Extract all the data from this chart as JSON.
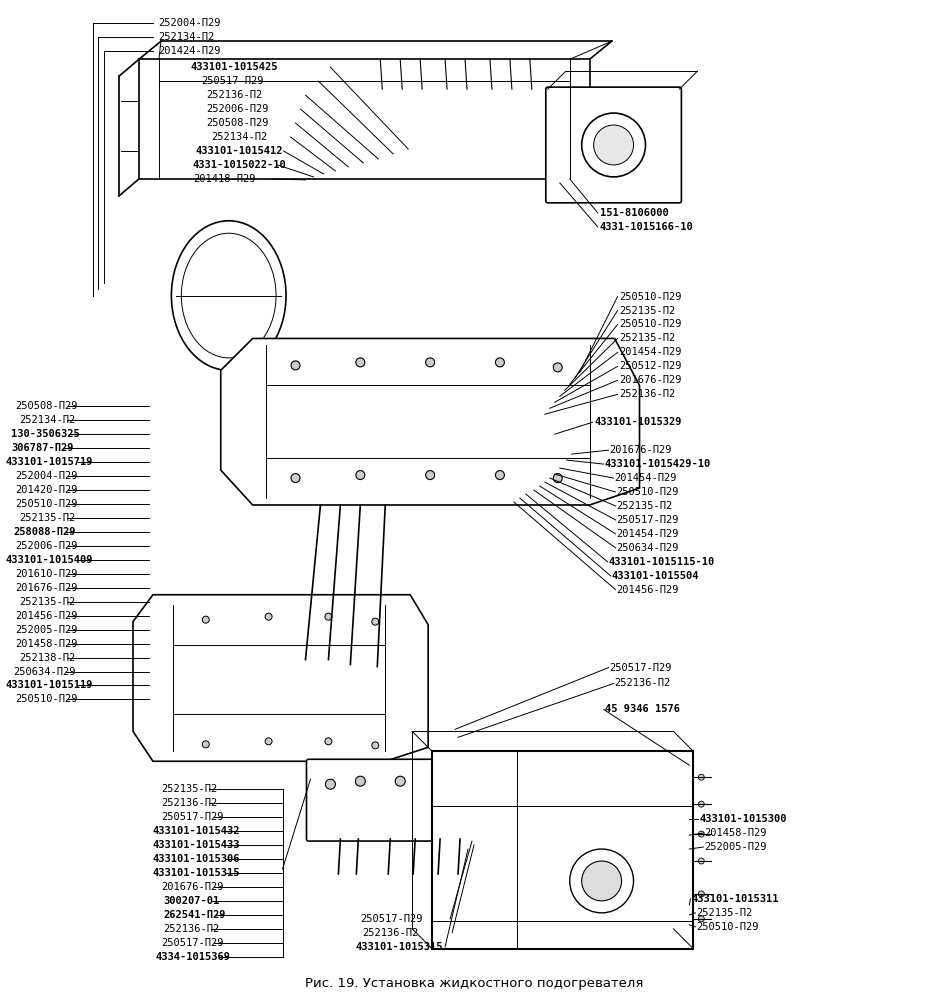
{
  "title": "Рис. 19. Установка жидкостного подогревателя",
  "bg": "#ffffff",
  "figsize": [
    9.49,
    10.0
  ],
  "dpi": 100,
  "top_left_labels": [
    [
      "252004-П29",
      157,
      22,
      false
    ],
    [
      "252134-П2",
      157,
      36,
      false
    ],
    [
      "201424-П29",
      157,
      50,
      false
    ],
    [
      "433101-1015425",
      190,
      66,
      true
    ],
    [
      "250517-П29",
      200,
      80,
      false
    ],
    [
      "252136-П2",
      205,
      94,
      false
    ],
    [
      "252006-П29",
      205,
      108,
      false
    ],
    [
      "250508-П29",
      205,
      122,
      false
    ],
    [
      "252134-П2",
      210,
      136,
      false
    ],
    [
      "433101-1015412",
      195,
      150,
      true
    ],
    [
      "4331-1015022-10",
      192,
      164,
      true
    ],
    [
      "201418-П29",
      192,
      178,
      false
    ]
  ],
  "right_top_labels": [
    [
      "151-8106000",
      600,
      212,
      true
    ],
    [
      "4331-1015166-10",
      600,
      226,
      true
    ],
    [
      "250510-П29",
      620,
      296,
      false
    ],
    [
      "252135-П2",
      620,
      310,
      false
    ],
    [
      "250510-П29",
      620,
      324,
      false
    ],
    [
      "252135-П2",
      620,
      338,
      false
    ],
    [
      "201454-П29",
      620,
      352,
      false
    ],
    [
      "250512-П29",
      620,
      366,
      false
    ],
    [
      "201676-П29",
      620,
      380,
      false
    ],
    [
      "252136-П2",
      620,
      394,
      false
    ],
    [
      "433101-1015329",
      595,
      422,
      true
    ],
    [
      "201676-П29",
      610,
      450,
      false
    ],
    [
      "433101-1015429-10",
      605,
      464,
      true
    ],
    [
      "201454-П29",
      615,
      478,
      false
    ],
    [
      "250510-П29",
      617,
      492,
      false
    ],
    [
      "252135-П2",
      617,
      506,
      false
    ],
    [
      "250517-П29",
      617,
      520,
      false
    ],
    [
      "201454-П29",
      617,
      534,
      false
    ],
    [
      "250634-П29",
      617,
      548,
      false
    ],
    [
      "433101-1015115-10",
      609,
      562,
      true
    ],
    [
      "433101-1015504",
      612,
      576,
      true
    ],
    [
      "201456-П29",
      617,
      590,
      false
    ]
  ],
  "right_mid_labels": [
    [
      "250517-П29",
      610,
      668,
      false
    ],
    [
      "252136-П2",
      615,
      684,
      false
    ],
    [
      "45 9346 1576",
      605,
      710,
      true
    ]
  ],
  "right_box_labels": [
    [
      "433101-1015300",
      700,
      820,
      true
    ],
    [
      "201458-П29",
      705,
      834,
      false
    ],
    [
      "252005-П29",
      705,
      848,
      false
    ],
    [
      "433101-1015311",
      692,
      900,
      true
    ],
    [
      "252135-П2",
      697,
      914,
      false
    ],
    [
      "250510-П29",
      697,
      928,
      false
    ]
  ],
  "left_mid_labels": [
    [
      "250508-П29",
      14,
      406,
      false
    ],
    [
      "252134-П2",
      18,
      420,
      false
    ],
    [
      "130-3506325",
      10,
      434,
      true
    ],
    [
      "306787-П29",
      10,
      448,
      true
    ],
    [
      "433101-1015719",
      4,
      462,
      true
    ],
    [
      "252004-П29",
      14,
      476,
      false
    ],
    [
      "201420-П29",
      14,
      490,
      false
    ],
    [
      "250510-П29",
      14,
      504,
      false
    ],
    [
      "252135-П2",
      18,
      518,
      false
    ],
    [
      "258088-П29",
      12,
      532,
      true
    ],
    [
      "252006-П29",
      14,
      546,
      false
    ],
    [
      "433101-1015409",
      4,
      560,
      true
    ],
    [
      "201610-П29",
      14,
      574,
      false
    ],
    [
      "201676-П29",
      14,
      588,
      false
    ],
    [
      "252135-П2",
      18,
      602,
      false
    ],
    [
      "201456-П29",
      14,
      616,
      false
    ],
    [
      "252005-П29",
      14,
      630,
      false
    ],
    [
      "201458-П29",
      14,
      644,
      false
    ],
    [
      "252138-П2",
      18,
      658,
      false
    ],
    [
      "250634-П29",
      12,
      672,
      false
    ],
    [
      "433101-1015119",
      4,
      686,
      true
    ],
    [
      "250510-П29",
      14,
      700,
      false
    ]
  ],
  "bottom_left_labels": [
    [
      "252135-П2",
      160,
      790,
      false
    ],
    [
      "252136-П2",
      160,
      804,
      false
    ],
    [
      "250517-П29",
      160,
      818,
      false
    ],
    [
      "433101-1015432",
      152,
      832,
      true
    ],
    [
      "433101-1015433",
      152,
      846,
      true
    ],
    [
      "433101-1015306",
      152,
      860,
      true
    ],
    [
      "433101-1015315",
      152,
      874,
      true
    ],
    [
      "201676-П29",
      160,
      888,
      false
    ],
    [
      "300207-01",
      162,
      902,
      true
    ],
    [
      "262541-П29",
      162,
      916,
      true
    ],
    [
      "252136-П2",
      162,
      930,
      false
    ],
    [
      "250517-П29",
      160,
      944,
      false
    ],
    [
      "4334-1015369",
      155,
      958,
      true
    ]
  ],
  "bottom_center_labels": [
    [
      "250517-П29",
      360,
      920,
      false
    ],
    [
      "252136-П2",
      362,
      934,
      false
    ],
    [
      "433101-1015315",
      355,
      948,
      true
    ]
  ]
}
